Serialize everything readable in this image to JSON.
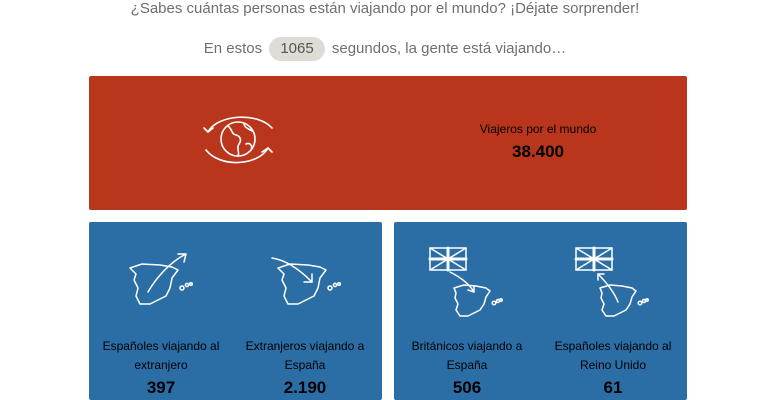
{
  "header": {
    "subtitle": "¿Sabes cuántas personas están viajando por el mundo? ¡Déjate sorprender!",
    "counter_prefix": "En estos",
    "seconds": "1065",
    "counter_suffix": "segundos, la gente está viajando…"
  },
  "world": {
    "label": "Viajeros por el mundo",
    "value": "38.400",
    "icon": "globe-arrows-icon"
  },
  "stats": [
    {
      "label": "Españoles viajando al extranjero",
      "value": "397",
      "icon": "spain-outbound-icon"
    },
    {
      "label": "Extranjeros viajando a España",
      "value": "2.190",
      "icon": "spain-inbound-icon"
    },
    {
      "label": "Británicos viajando a España",
      "value": "506",
      "icon": "uk-to-spain-icon"
    },
    {
      "label": "Españoles viajando al Reino Unido",
      "value": "61",
      "icon": "spain-to-uk-icon"
    }
  ],
  "colors": {
    "red_card": "#b9361c",
    "blue_card": "#2b6ea6",
    "counter_pill": "#dedcd4",
    "text_gray": "#6f6f6f"
  }
}
